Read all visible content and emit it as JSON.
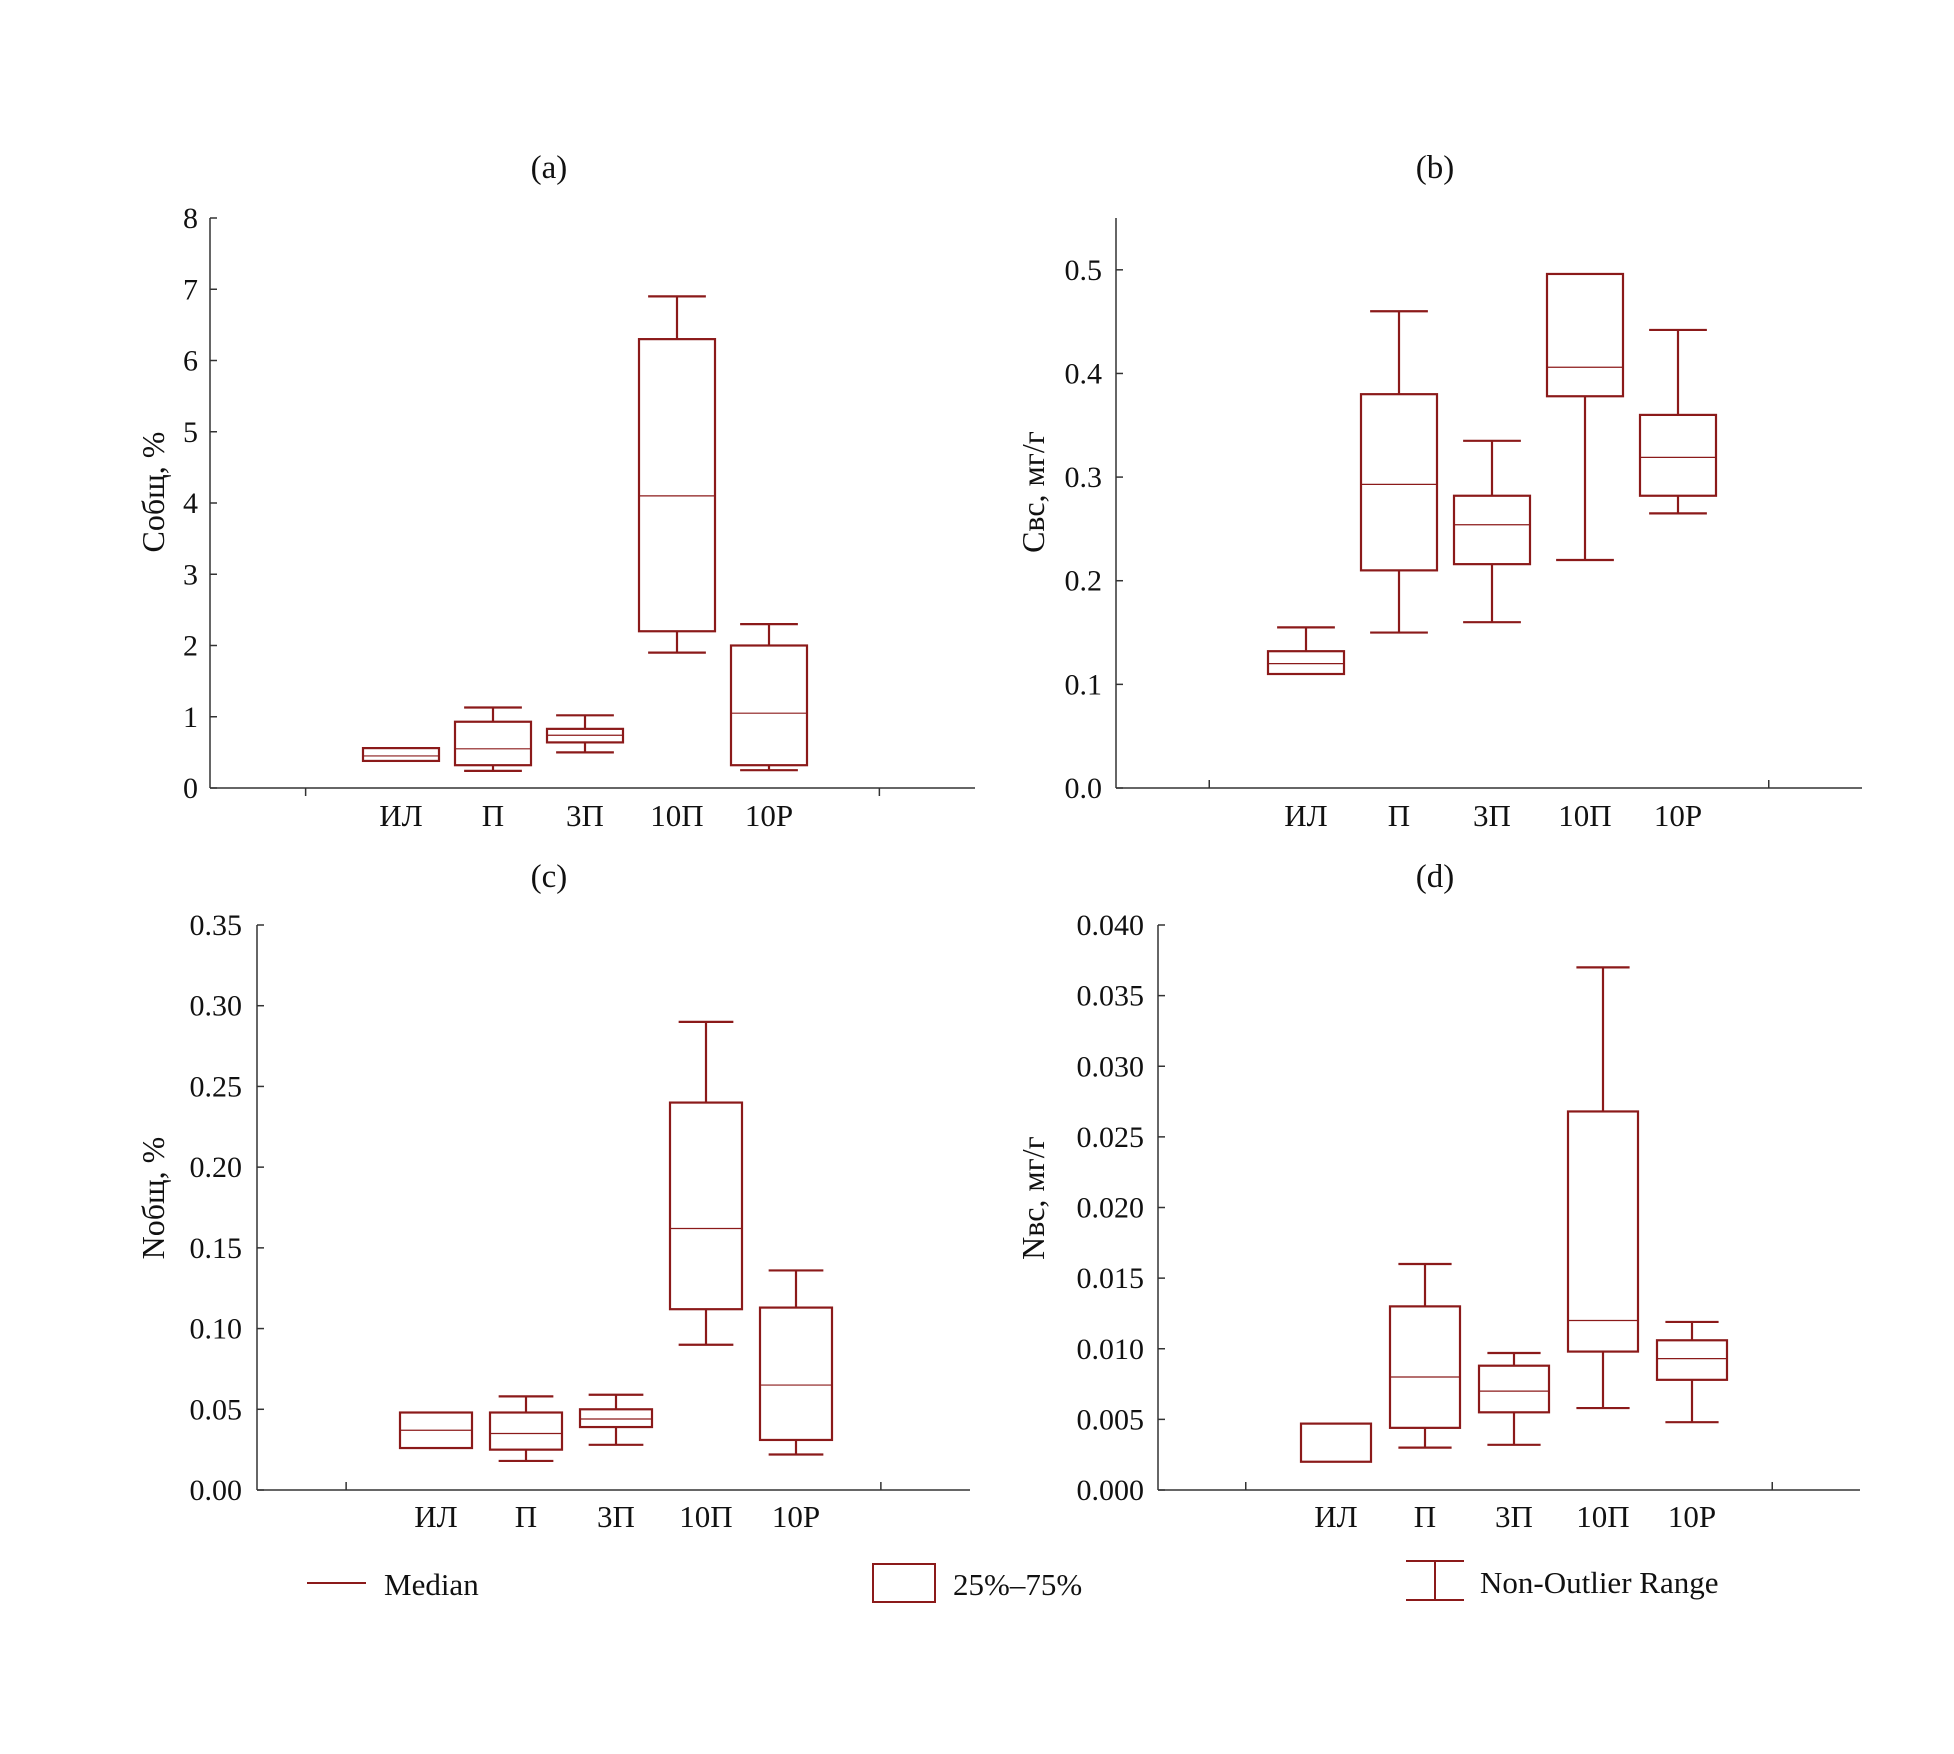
{
  "colors": {
    "box": "#8b1a1a",
    "axis": "#333333",
    "text": "#111111"
  },
  "legend": {
    "median_label": "Median",
    "box_label": "25%–75%",
    "whisker_label": "Non-Outlier Range"
  },
  "chart_data": [
    {
      "id": "a",
      "type": "boxplot",
      "title": "(a)",
      "ylabel": "Cобщ, %",
      "xlabel": "",
      "categories": [
        "ИЛ",
        "П",
        "3П",
        "10П",
        "10Р"
      ],
      "ylim": [
        0,
        8
      ],
      "yticks": [
        0,
        1,
        2,
        3,
        4,
        5,
        6,
        7,
        8
      ],
      "ytick_labels": [
        "0",
        "1",
        "2",
        "3",
        "4",
        "5",
        "6",
        "7",
        "8"
      ],
      "series": [
        {
          "category": "ИЛ",
          "min": 0.38,
          "q1": 0.38,
          "median": 0.45,
          "q3": 0.56,
          "max": 0.56
        },
        {
          "category": "П",
          "min": 0.24,
          "q1": 0.32,
          "median": 0.55,
          "q3": 0.93,
          "max": 1.13
        },
        {
          "category": "3П",
          "min": 0.5,
          "q1": 0.64,
          "median": 0.74,
          "q3": 0.83,
          "max": 1.02
        },
        {
          "category": "10П",
          "min": 1.9,
          "q1": 2.2,
          "median": 4.1,
          "q3": 6.3,
          "max": 6.9
        },
        {
          "category": "10Р",
          "min": 0.25,
          "q1": 0.32,
          "median": 1.05,
          "q3": 2.0,
          "max": 2.3
        }
      ]
    },
    {
      "id": "b",
      "type": "boxplot",
      "title": "(b)",
      "ylabel": "Cвс, мг/г",
      "xlabel": "",
      "categories": [
        "ИЛ",
        "П",
        "3П",
        "10П",
        "10Р"
      ],
      "ylim": [
        0,
        0.55
      ],
      "yticks": [
        0,
        0.1,
        0.2,
        0.3,
        0.4,
        0.5
      ],
      "ytick_labels": [
        "0.0",
        "0.1",
        "0.2",
        "0.3",
        "0.4",
        "0.5"
      ],
      "series": [
        {
          "category": "ИЛ",
          "min": 0.11,
          "q1": 0.11,
          "median": 0.12,
          "q3": 0.132,
          "max": 0.155
        },
        {
          "category": "П",
          "min": 0.15,
          "q1": 0.21,
          "median": 0.293,
          "q3": 0.38,
          "max": 0.46
        },
        {
          "category": "3П",
          "min": 0.16,
          "q1": 0.216,
          "median": 0.254,
          "q3": 0.282,
          "max": 0.335
        },
        {
          "category": "10П",
          "min": 0.22,
          "q1": 0.378,
          "median": 0.406,
          "q3": 0.496,
          "max": 0.496
        },
        {
          "category": "10Р",
          "min": 0.265,
          "q1": 0.282,
          "median": 0.319,
          "q3": 0.36,
          "max": 0.442
        }
      ]
    },
    {
      "id": "c",
      "type": "boxplot",
      "title": "(c)",
      "ylabel": "Nобщ, %",
      "xlabel": "",
      "categories": [
        "ИЛ",
        "П",
        "3П",
        "10П",
        "10Р"
      ],
      "ylim": [
        0,
        0.35
      ],
      "yticks": [
        0,
        0.05,
        0.1,
        0.15,
        0.2,
        0.25,
        0.3,
        0.35
      ],
      "ytick_labels": [
        "0.00",
        "0.05",
        "0.10",
        "0.15",
        "0.20",
        "0.25",
        "0.30",
        "0.35"
      ],
      "series": [
        {
          "category": "ИЛ",
          "min": 0.026,
          "q1": 0.026,
          "median": 0.037,
          "q3": 0.048,
          "max": 0.048
        },
        {
          "category": "П",
          "min": 0.018,
          "q1": 0.025,
          "median": 0.035,
          "q3": 0.048,
          "max": 0.058
        },
        {
          "category": "3П",
          "min": 0.028,
          "q1": 0.039,
          "median": 0.044,
          "q3": 0.05,
          "max": 0.059
        },
        {
          "category": "10П",
          "min": 0.09,
          "q1": 0.112,
          "median": 0.162,
          "q3": 0.24,
          "max": 0.29
        },
        {
          "category": "10Р",
          "min": 0.022,
          "q1": 0.031,
          "median": 0.065,
          "q3": 0.113,
          "max": 0.136
        }
      ]
    },
    {
      "id": "d",
      "type": "boxplot",
      "title": "(d)",
      "ylabel": "Nвс, мг/г",
      "xlabel": "",
      "categories": [
        "ИЛ",
        "П",
        "3П",
        "10П",
        "10Р"
      ],
      "ylim": [
        0,
        0.04
      ],
      "yticks": [
        0,
        0.005,
        0.01,
        0.015,
        0.02,
        0.025,
        0.03,
        0.035,
        0.04
      ],
      "ytick_labels": [
        "0.000",
        "0.005",
        "0.010",
        "0.015",
        "0.020",
        "0.025",
        "0.030",
        "0.035",
        "0.040"
      ],
      "series": [
        {
          "category": "ИЛ",
          "min": 0.002,
          "q1": 0.002,
          "median": 0.002,
          "q3": 0.0047,
          "max": 0.0047
        },
        {
          "category": "П",
          "min": 0.003,
          "q1": 0.0044,
          "median": 0.008,
          "q3": 0.013,
          "max": 0.016
        },
        {
          "category": "3П",
          "min": 0.0032,
          "q1": 0.0055,
          "median": 0.007,
          "q3": 0.0088,
          "max": 0.0097
        },
        {
          "category": "10П",
          "min": 0.0058,
          "q1": 0.0098,
          "median": 0.012,
          "q3": 0.0268,
          "max": 0.037
        },
        {
          "category": "10Р",
          "min": 0.0048,
          "q1": 0.0078,
          "median": 0.0093,
          "q3": 0.0106,
          "max": 0.0119
        }
      ]
    }
  ]
}
